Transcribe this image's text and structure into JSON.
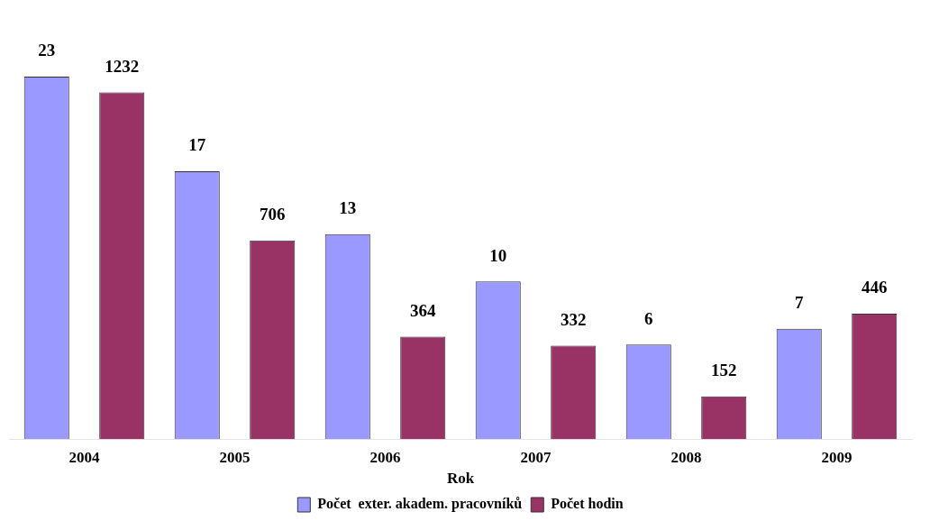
{
  "chart_data": {
    "type": "bar",
    "xlabel": "Rok",
    "categories": [
      "2004",
      "2005",
      "2006",
      "2007",
      "2008",
      "2009"
    ],
    "series": [
      {
        "name": "Počet  exter. akadem. pracovníků",
        "color": "#9999ff",
        "values": [
          23,
          17,
          13,
          10,
          6,
          7
        ]
      },
      {
        "name": "Počet hodin",
        "color": "#993366",
        "values": [
          1232,
          706,
          364,
          332,
          152,
          446
        ],
        "axis": "y2"
      }
    ],
    "data_labels": true,
    "legend": "bottom",
    "grid": false,
    "tick_labels": "x"
  }
}
